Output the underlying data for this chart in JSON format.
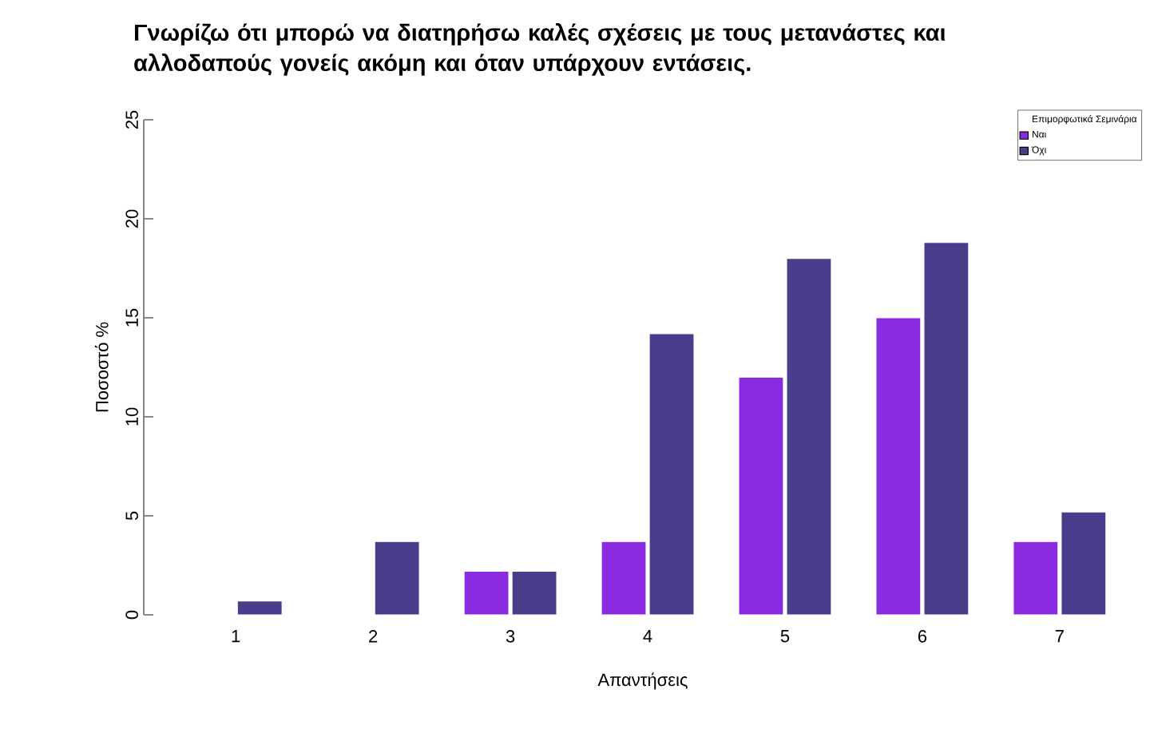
{
  "chart_data": {
    "type": "bar",
    "title": "Γνωρίζω ότι μπορώ να διατηρήσω καλές σχέσεις με τους μετανάστες και αλλοδαπούς γονείς ακόμη και όταν υπάρχουν εντάσεις.",
    "xlabel": "Απαντήσεις",
    "ylabel": "Ποσοστό %",
    "legend_title": "Επιμορφωτικά Σεμινάρια",
    "categories": [
      "1",
      "2",
      "3",
      "4",
      "5",
      "6",
      "7"
    ],
    "series": [
      {
        "name": "Ναι",
        "color": "#8a2be2",
        "values": [
          null,
          null,
          2.2,
          3.7,
          12.0,
          15.0,
          3.7
        ]
      },
      {
        "name": "Όχι",
        "color": "#483d8b",
        "values": [
          0.7,
          3.7,
          2.2,
          14.2,
          18.0,
          18.8,
          5.2
        ]
      }
    ],
    "ylim": [
      0,
      25
    ],
    "yticks": [
      0,
      5,
      10,
      15,
      20,
      25
    ],
    "grid": false,
    "legend": "top right"
  }
}
